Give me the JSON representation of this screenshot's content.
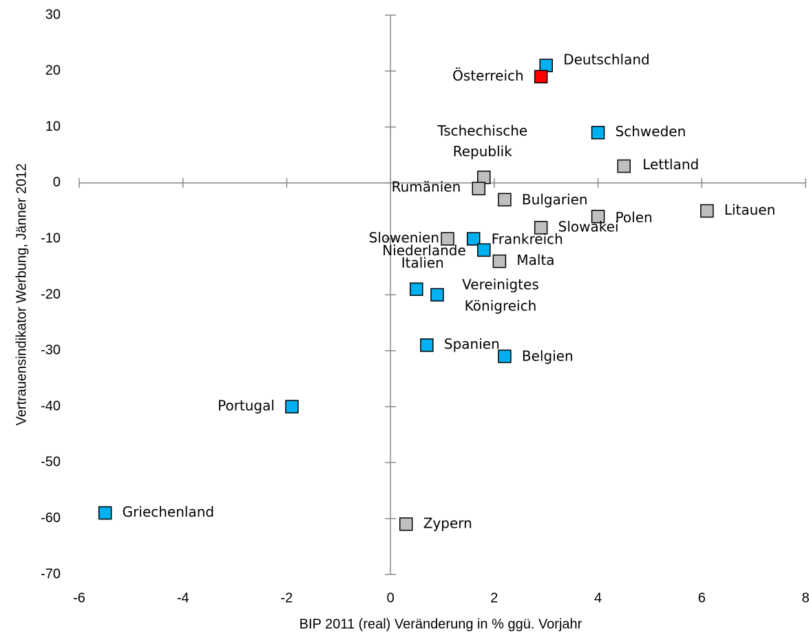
{
  "chart_data": {
    "type": "scatter",
    "x_label": "BIP 2011 (real) Veränderung in % ggü. Vorjahr",
    "y_label": "Vertrauensindikator Werbung, Jänner 2012",
    "xlim": [
      -6,
      8
    ],
    "ylim": [
      -70,
      30
    ],
    "xticks": [
      -6,
      -4,
      -2,
      0,
      2,
      4,
      6,
      8
    ],
    "yticks": [
      -70,
      -60,
      -50,
      -40,
      -30,
      -20,
      -10,
      0,
      10,
      20,
      30
    ],
    "points": [
      {
        "label": "Deutschland",
        "x": 3.0,
        "y": 21,
        "color": "#00b0f0"
      },
      {
        "label": "Österreich",
        "x": 2.9,
        "y": 19,
        "color": "#ff0000"
      },
      {
        "label": "Schweden",
        "x": 4.0,
        "y": 9,
        "color": "#00b0f0"
      },
      {
        "label": "Tschechische Republik",
        "x": 1.8,
        "y": 1,
        "color": "#bfbfbf"
      },
      {
        "label": "Lettland",
        "x": 4.5,
        "y": 3,
        "color": "#bfbfbf"
      },
      {
        "label": "Rumänien",
        "x": 1.7,
        "y": -1,
        "color": "#bfbfbf"
      },
      {
        "label": "Bulgarien",
        "x": 2.2,
        "y": -3,
        "color": "#bfbfbf"
      },
      {
        "label": "Polen",
        "x": 4.0,
        "y": -6,
        "color": "#bfbfbf"
      },
      {
        "label": "Litauen",
        "x": 6.1,
        "y": -5,
        "color": "#bfbfbf"
      },
      {
        "label": "Slowakei",
        "x": 2.9,
        "y": -8,
        "color": "#bfbfbf"
      },
      {
        "label": "Slowenien",
        "x": 1.1,
        "y": -10,
        "color": "#bfbfbf"
      },
      {
        "label": "Frankreich",
        "x": 1.6,
        "y": -10,
        "color": "#00b0f0"
      },
      {
        "label": "Niederlande",
        "x": 1.8,
        "y": -12,
        "color": "#00b0f0"
      },
      {
        "label": "Malta",
        "x": 2.1,
        "y": -14,
        "color": "#bfbfbf"
      },
      {
        "label": "Italien",
        "x": 0.5,
        "y": -19,
        "color": "#00b0f0"
      },
      {
        "label": "Vereinigtes Königreich",
        "x": 0.9,
        "y": -20,
        "color": "#00b0f0"
      },
      {
        "label": "Spanien",
        "x": 0.7,
        "y": -29,
        "color": "#00b0f0"
      },
      {
        "label": "Belgien",
        "x": 2.2,
        "y": -31,
        "color": "#00b0f0"
      },
      {
        "label": "Portugal",
        "x": -1.9,
        "y": -40,
        "color": "#00b0f0"
      },
      {
        "label": "Griechenland",
        "x": -5.5,
        "y": -59,
        "color": "#00b0f0"
      },
      {
        "label": "Zypern",
        "x": 0.3,
        "y": -61,
        "color": "#bfbfbf"
      }
    ]
  }
}
